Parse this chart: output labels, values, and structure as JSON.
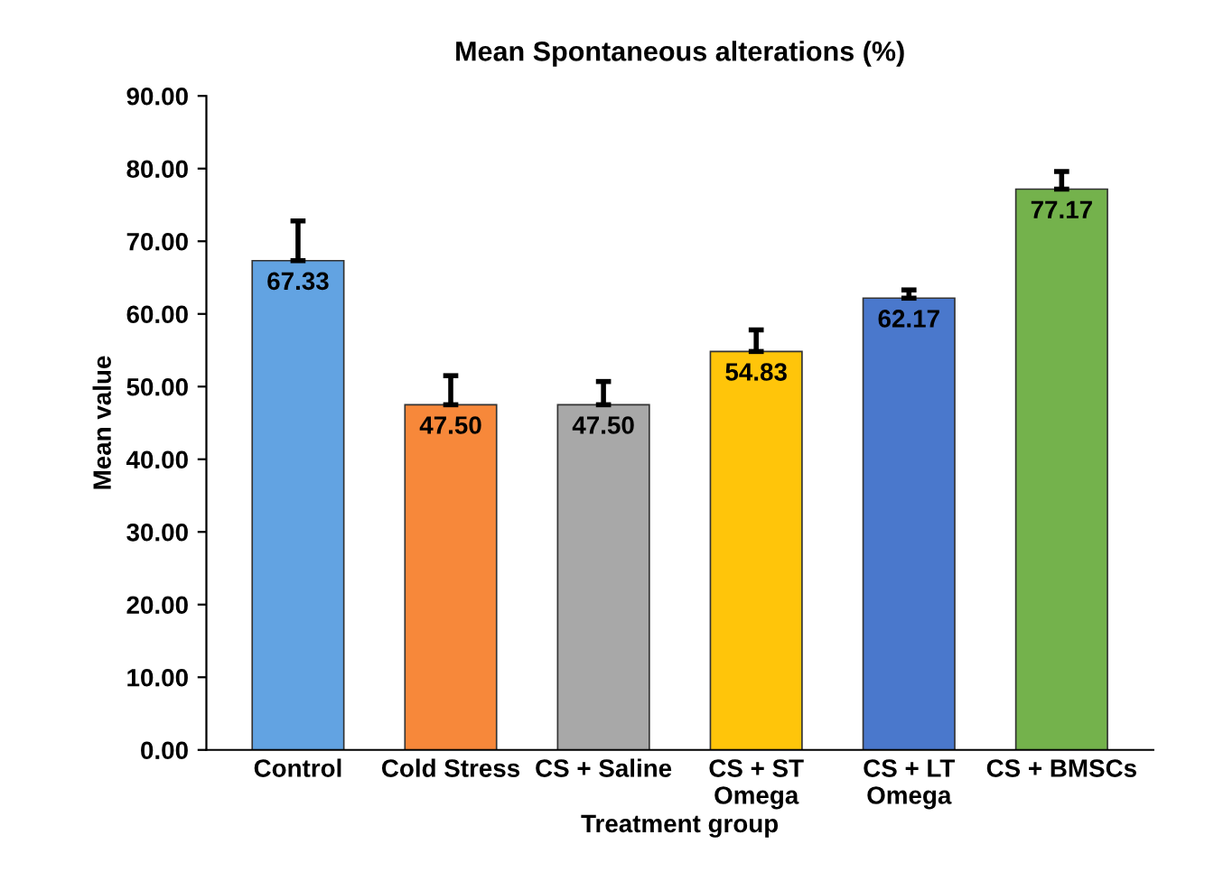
{
  "chart_data": {
    "type": "bar",
    "title": "Mean Spontaneous alterations (%)",
    "xlabel": "Treatment group",
    "ylabel": "Mean value",
    "categories": [
      "Control",
      "Cold Stress",
      "CS + Saline",
      "CS + ST\nOmega",
      "CS + LT\nOmega",
      "CS + BMSCs"
    ],
    "values": [
      67.33,
      47.5,
      47.5,
      54.83,
      62.17,
      77.17
    ],
    "value_labels": [
      "67.33",
      "47.50",
      "47.50",
      "54.83",
      "62.17",
      "77.17"
    ],
    "colors": [
      "#62a3e2",
      "#f7883a",
      "#a8a8a8",
      "#ffc50a",
      "#4a78cc",
      "#74b24c"
    ],
    "errors": [
      [
        67.33,
        72.8
      ],
      [
        47.5,
        51.5
      ],
      [
        47.5,
        50.7
      ],
      [
        54.83,
        57.8
      ],
      [
        62.17,
        63.3
      ],
      [
        77.17,
        79.6
      ]
    ],
    "ylim": [
      0,
      90
    ],
    "yticks": [
      {
        "value": 0,
        "label": "0.00"
      },
      {
        "value": 10,
        "label": "10.00"
      },
      {
        "value": 20,
        "label": "20.00"
      },
      {
        "value": 30,
        "label": "30.00"
      },
      {
        "value": 40,
        "label": "40.00"
      },
      {
        "value": 50,
        "label": "50.00"
      },
      {
        "value": 60,
        "label": "60.00"
      },
      {
        "value": 70,
        "label": "70.00"
      },
      {
        "value": 80,
        "label": "80.00"
      },
      {
        "value": 90,
        "label": "90.00"
      }
    ],
    "grid": false,
    "legend": false
  }
}
